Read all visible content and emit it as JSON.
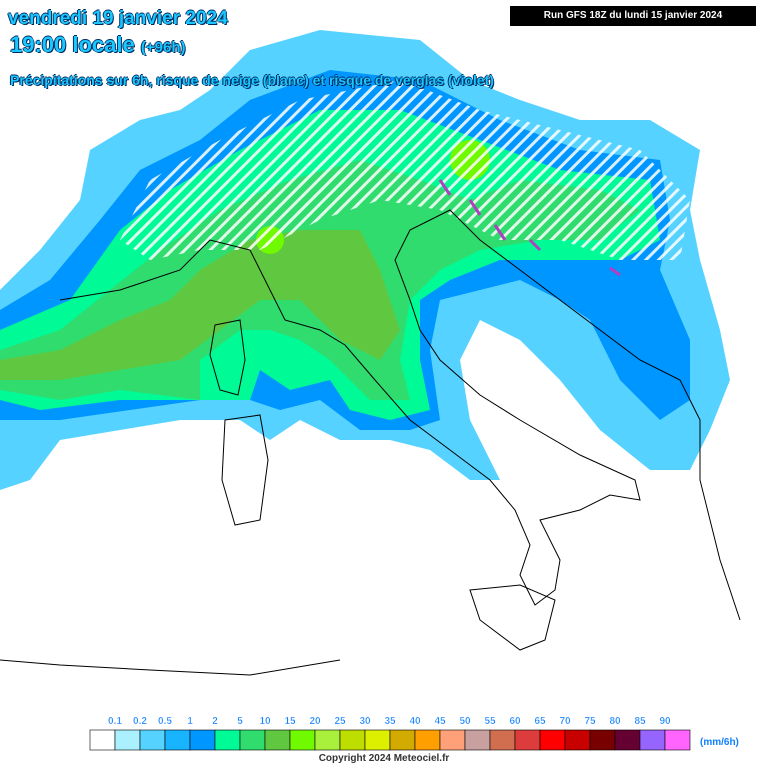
{
  "header": {
    "date": "vendredi 19 janvier 2024",
    "time": "19:00 locale",
    "lead": "(+96h)",
    "run": "Run GFS 18Z du lundi 15 janvier 2024",
    "subtitle": "Précipitations sur 6h, risque de neige (blanc) et risque de verglas (violet)"
  },
  "legend": {
    "ticks": [
      0.1,
      0.2,
      0.5,
      1,
      2,
      5,
      10,
      15,
      20,
      25,
      30,
      35,
      40,
      45,
      50,
      55,
      60,
      65,
      70,
      75,
      80,
      85,
      90
    ],
    "colors": [
      "#ffffff",
      "#aaf0ff",
      "#55d2ff",
      "#18b4ff",
      "#0096ff",
      "#00fa96",
      "#30dc6e",
      "#60c840",
      "#70fa00",
      "#a8f03c",
      "#bede00",
      "#dcf000",
      "#d2aa00",
      "#ffa000",
      "#ffa078",
      "#c8a0a0",
      "#d26e50",
      "#dc3c3c",
      "#ff0000",
      "#c80000",
      "#780000",
      "#640032",
      "#9664ff",
      "#ff64ff"
    ],
    "unit": "(mm/6h)"
  },
  "footer": {
    "copyright": "Copyright 2024 Meteociel.fr"
  }
}
